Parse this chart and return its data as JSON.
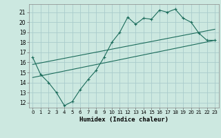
{
  "title": "",
  "xlabel": "Humidex (Indice chaleur)",
  "ylabel": "",
  "background_color": "#cce8e0",
  "grid_color": "#aacccc",
  "line_color": "#1a6b5a",
  "xlim": [
    -0.5,
    23.5
  ],
  "ylim": [
    11.5,
    21.8
  ],
  "yticks": [
    12,
    13,
    14,
    15,
    16,
    17,
    18,
    19,
    20,
    21
  ],
  "xticks": [
    0,
    1,
    2,
    3,
    4,
    5,
    6,
    7,
    8,
    9,
    10,
    11,
    12,
    13,
    14,
    15,
    16,
    17,
    18,
    19,
    20,
    21,
    22,
    23
  ],
  "line1_x": [
    0,
    1,
    2,
    3,
    4,
    5,
    6,
    7,
    8,
    9,
    10,
    11,
    12,
    13,
    14,
    15,
    16,
    17,
    18,
    19,
    20,
    21,
    22,
    23
  ],
  "line1_y": [
    16.5,
    14.8,
    14.0,
    13.0,
    11.7,
    12.1,
    13.3,
    14.3,
    15.2,
    16.5,
    18.0,
    19.0,
    20.5,
    19.8,
    20.4,
    20.3,
    21.2,
    21.0,
    21.3,
    20.4,
    20.0,
    18.9,
    18.2,
    18.2
  ],
  "line2_x": [
    0,
    23
  ],
  "line2_y": [
    14.5,
    18.2
  ],
  "line3_x": [
    0,
    23
  ],
  "line3_y": [
    15.8,
    19.3
  ]
}
